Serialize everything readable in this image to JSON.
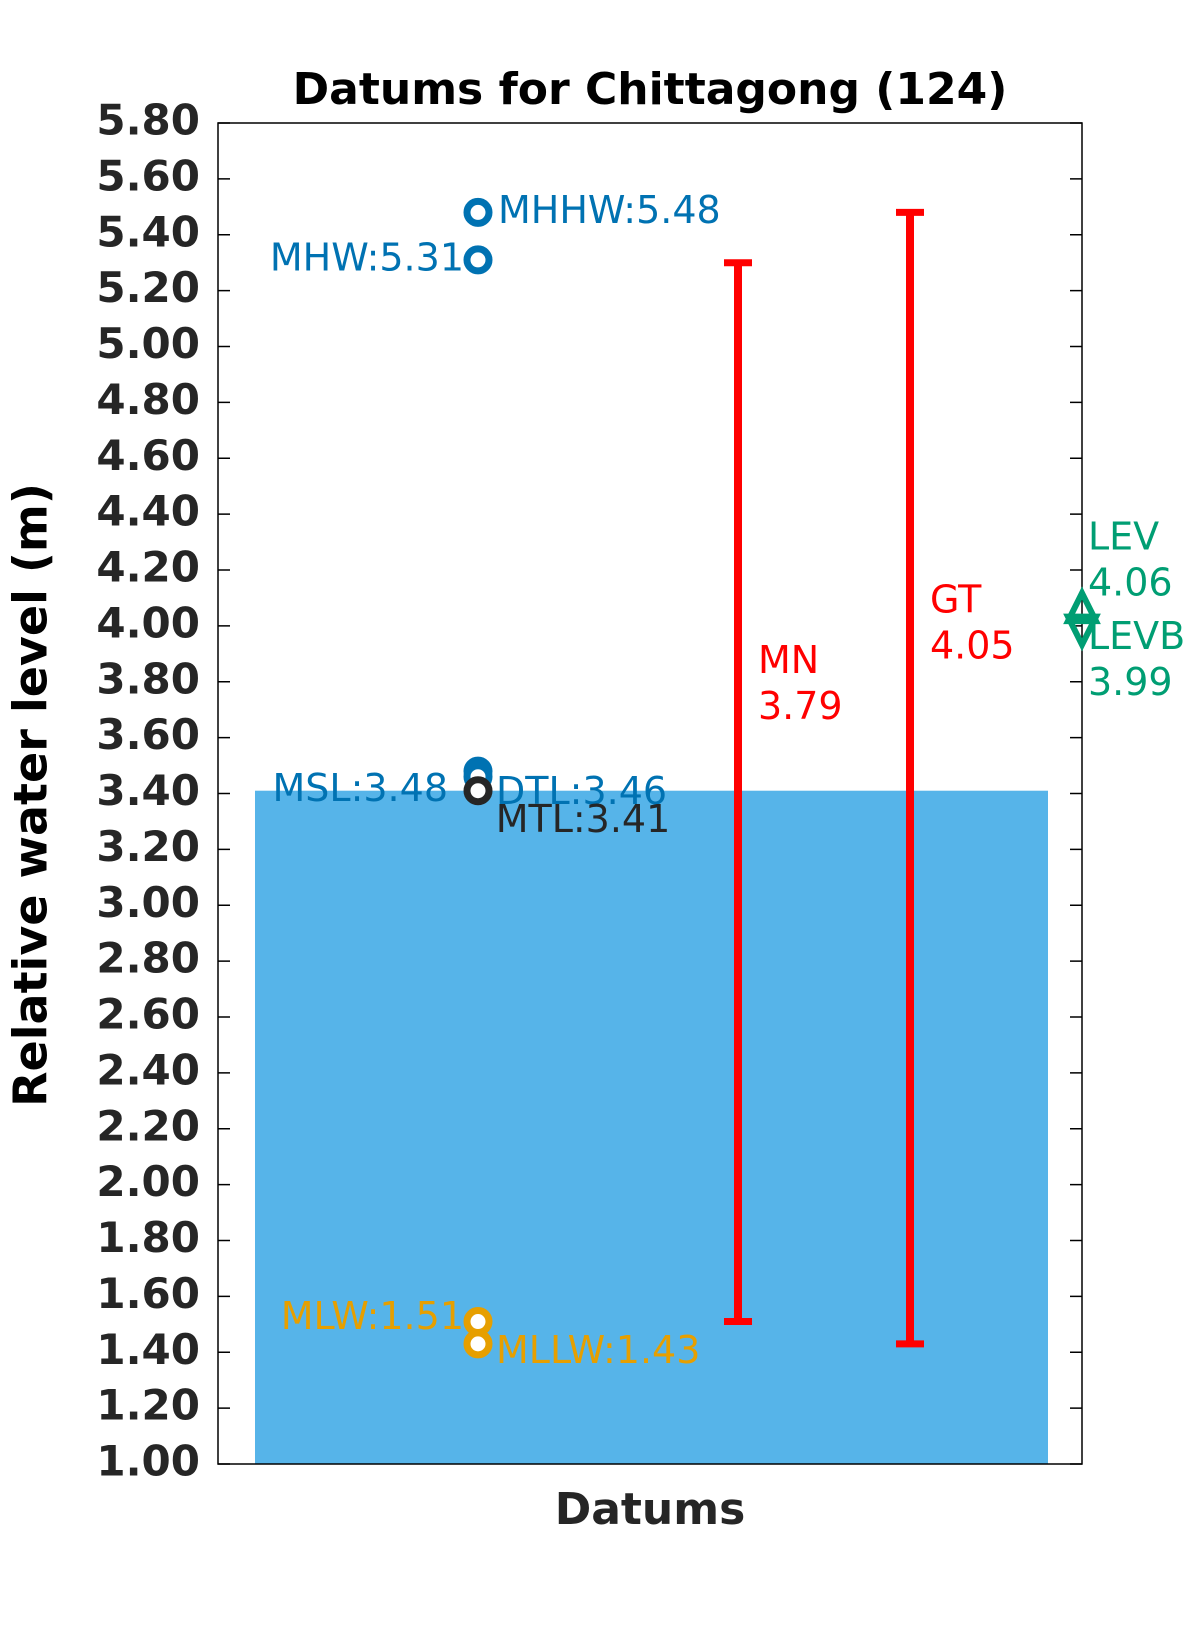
{
  "chart_data": {
    "type": "datum",
    "title": "Datums for Chittagong (124)",
    "y_label": "Relative water level (m)",
    "x_label": "Datums",
    "ylim": [
      1.0,
      5.8
    ],
    "yticks": [
      {
        "value": 1.0,
        "label": "1.00"
      },
      {
        "value": 1.2,
        "label": "1.20"
      },
      {
        "value": 1.4,
        "label": "1.40"
      },
      {
        "value": 1.6,
        "label": "1.60"
      },
      {
        "value": 1.8,
        "label": "1.80"
      },
      {
        "value": 2.0,
        "label": "2.00"
      },
      {
        "value": 2.2,
        "label": "2.20"
      },
      {
        "value": 2.4,
        "label": "2.40"
      },
      {
        "value": 2.6,
        "label": "2.60"
      },
      {
        "value": 2.8,
        "label": "2.80"
      },
      {
        "value": 3.0,
        "label": "3.00"
      },
      {
        "value": 3.2,
        "label": "3.20"
      },
      {
        "value": 3.4,
        "label": "3.40"
      },
      {
        "value": 3.6,
        "label": "3.60"
      },
      {
        "value": 3.8,
        "label": "3.80"
      },
      {
        "value": 4.0,
        "label": "4.00"
      },
      {
        "value": 4.2,
        "label": "4.20"
      },
      {
        "value": 4.4,
        "label": "4.40"
      },
      {
        "value": 4.6,
        "label": "4.60"
      },
      {
        "value": 4.8,
        "label": "4.80"
      },
      {
        "value": 5.0,
        "label": "5.00"
      },
      {
        "value": 5.2,
        "label": "5.20"
      },
      {
        "value": 5.4,
        "label": "5.40"
      },
      {
        "value": 5.6,
        "label": "5.60"
      },
      {
        "value": 5.8,
        "label": "5.80"
      }
    ],
    "bar": {
      "value": 3.41,
      "color": "#56b4e9"
    },
    "points": {
      "values": [
        5.48,
        5.31,
        3.48,
        3.46,
        3.41,
        1.51,
        1.43
      ],
      "value_labels": [
        "MHHW:5.48",
        "MHW:5.31",
        "MSL:3.48",
        "DTL:3.46",
        "MTL:3.41",
        "MLW:1.51",
        "MLLW:1.43"
      ],
      "colors": [
        "#0072b2",
        "#0072b2",
        "#0072b2",
        "#0072b2",
        "#262626",
        "#e69f00",
        "#e69f00"
      ]
    },
    "ranges": [
      {
        "name": "MN",
        "value": 3.79,
        "low": 1.51,
        "high": 5.3,
        "color": "#ff0000"
      },
      {
        "name": "GT",
        "value": 4.05,
        "low": 1.43,
        "high": 5.48,
        "color": "#ff0000"
      }
    ],
    "extremes": [
      {
        "name": "LEV",
        "value": 4.06,
        "color": "#009e73"
      },
      {
        "name": "LEVB",
        "value": 3.99,
        "color": "#009e73"
      }
    ]
  }
}
